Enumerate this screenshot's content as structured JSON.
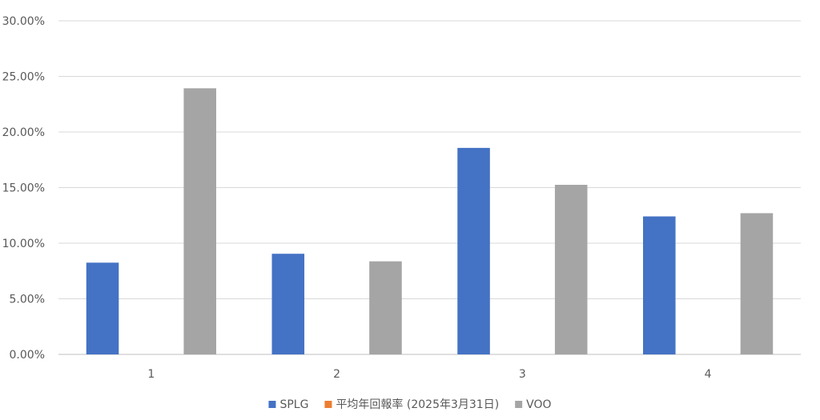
{
  "chart_data": {
    "type": "bar",
    "categories": [
      "1",
      "2",
      "3",
      "4"
    ],
    "series": [
      {
        "name": "SPLG",
        "color": "#4472C4",
        "values": [
          0.0825,
          0.0905,
          0.1857,
          0.1241
        ]
      },
      {
        "name": "平均年回報率 (2025年3月31日)",
        "color": "#ED7D31",
        "values": [
          0,
          0,
          0,
          0
        ]
      },
      {
        "name": "VOO",
        "color": "#A5A5A5",
        "values": [
          0.2393,
          0.0837,
          0.1525,
          0.127
        ]
      }
    ],
    "ylim": [
      0,
      0.3
    ],
    "yticks": [
      0.0,
      0.05,
      0.1,
      0.15,
      0.2,
      0.25,
      0.3
    ],
    "ytick_labels": [
      "0.00%",
      "5.00%",
      "10.00%",
      "15.00%",
      "20.00%",
      "25.00%",
      "30.00%"
    ],
    "grid": true,
    "legend": "bottom",
    "title": "",
    "xlabel": "",
    "ylabel": ""
  }
}
